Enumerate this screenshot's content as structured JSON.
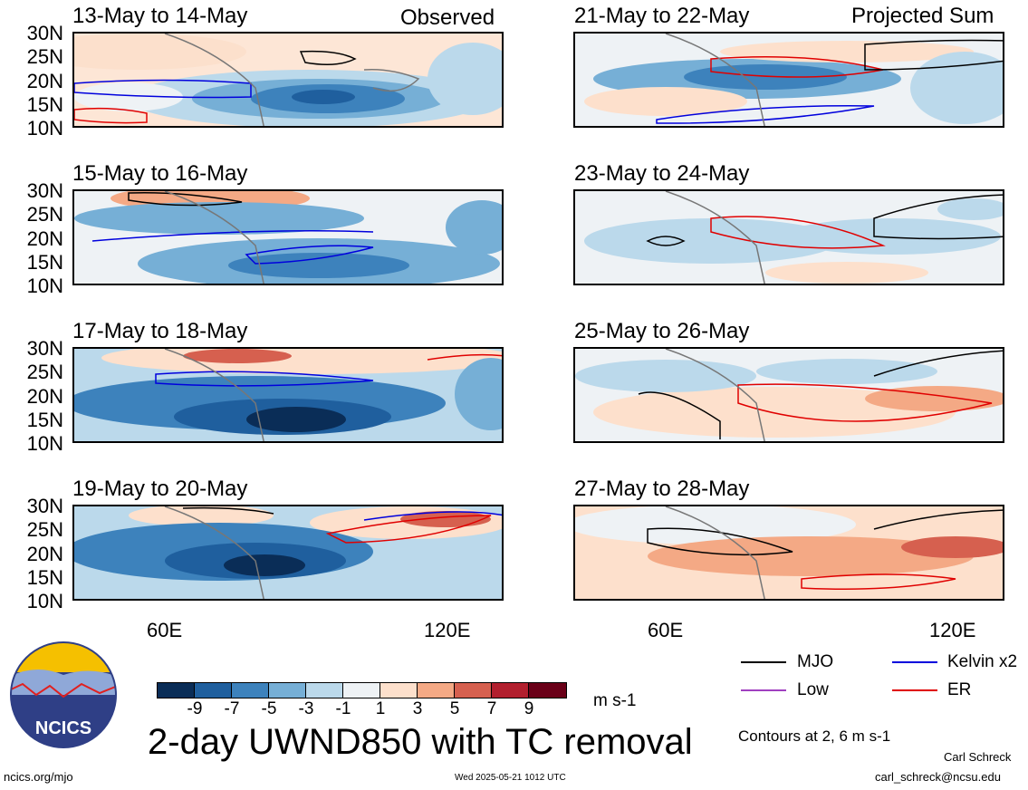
{
  "panels_left_header": "Observed",
  "panels_right_header": "Projected Sum",
  "panels": [
    {
      "title": "13-May to 14-May"
    },
    {
      "title": "15-May to 16-May"
    },
    {
      "title": "17-May to 18-May"
    },
    {
      "title": "19-May to 20-May"
    },
    {
      "title": "21-May to 22-May"
    },
    {
      "title": "23-May to 24-May"
    },
    {
      "title": "25-May to 26-May"
    },
    {
      "title": "27-May to 28-May"
    }
  ],
  "lat_labels": [
    "30N",
    "25N",
    "20N",
    "15N",
    "10N"
  ],
  "lon_labels": [
    "60E",
    "120E"
  ],
  "colorbar": {
    "labels": [
      "-9",
      "-7",
      "-5",
      "-3",
      "-1",
      "1",
      "3",
      "5",
      "7",
      "9"
    ],
    "colors": [
      "#0a2d57",
      "#1f5f9e",
      "#3d82bc",
      "#76afd6",
      "#bbd9eb",
      "#eef2f5",
      "#fde0cc",
      "#f4a985",
      "#d6604f",
      "#b21f2e",
      "#6a0018"
    ],
    "units": "m s-1"
  },
  "legend": {
    "items": [
      {
        "label": "MJO",
        "color": "#000000"
      },
      {
        "label": "Kelvin x2",
        "color": "#0000dd"
      },
      {
        "label": "Low",
        "color": "#a040c0"
      },
      {
        "label": "ER",
        "color": "#e00000"
      }
    ],
    "note": "Contours at 2, 6 m s-1"
  },
  "main_title": "2-day UWND850 with TC removal",
  "logo_text": "NCICS",
  "footer": {
    "url": "ncics.org/mjo",
    "timestamp": "Wed 2025-05-21 1012 UTC",
    "author": "Carl Schreck",
    "email": "carl_schreck@ncsu.edu"
  }
}
